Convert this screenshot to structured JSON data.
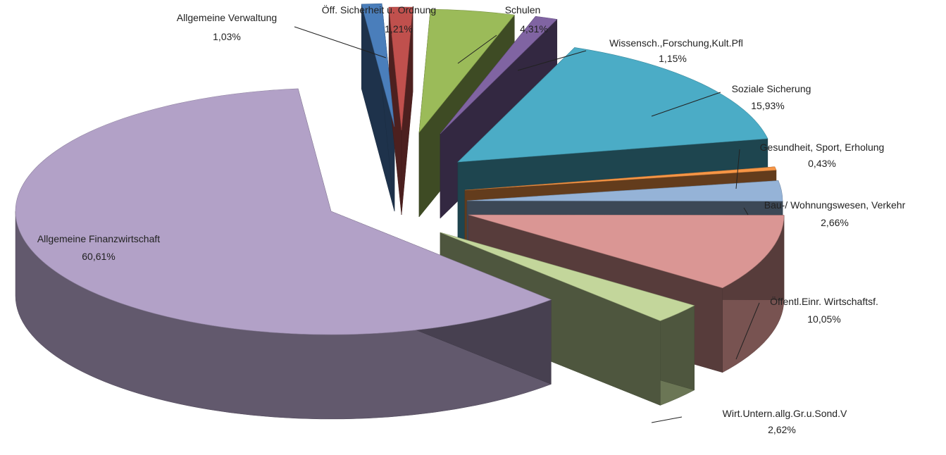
{
  "chart_data": {
    "type": "pie",
    "variant": "3d-exploded",
    "title": "",
    "slices": [
      {
        "label": "Allgemeine Verwaltung",
        "value_label": "1,03%",
        "value": 1.03,
        "color": "#4a7ebb"
      },
      {
        "label": "Öff. Sicherheit u. Ordnung",
        "value_label": "1,21%",
        "value": 1.21,
        "color": "#c0504d"
      },
      {
        "label": "Schulen",
        "value_label": "4,31%",
        "value": 4.31,
        "color": "#9bbb59"
      },
      {
        "label": "Wissensch.,Forschung,Kult.Pfl",
        "value_label": "1,15%",
        "value": 1.15,
        "color": "#8064a2"
      },
      {
        "label": "Soziale Sicherung",
        "value_label": "15,93%",
        "value": 15.93,
        "color": "#4bacc6"
      },
      {
        "label": "Gesundheit, Sport, Erholung",
        "value_label": "0,43%",
        "value": 0.43,
        "color": "#f79646"
      },
      {
        "label": "Bau-/ Wohnungswesen, Verkehr",
        "value_label": "2,66%",
        "value": 2.66,
        "color": "#95b3d7"
      },
      {
        "label": "Öffentl.Einr. Wirtschaftsf.",
        "value_label": "10,05%",
        "value": 10.05,
        "color": "#da9694"
      },
      {
        "label": "Wirt.Untern.allg.Gr.u.Sond.V",
        "value_label": "2,62%",
        "value": 2.62,
        "color": "#c3d69b"
      },
      {
        "label": "Allgemeine Finanzwirtschaft",
        "value_label": "60,61%",
        "value": 60.61,
        "color": "#b2a1c7"
      }
    ]
  }
}
